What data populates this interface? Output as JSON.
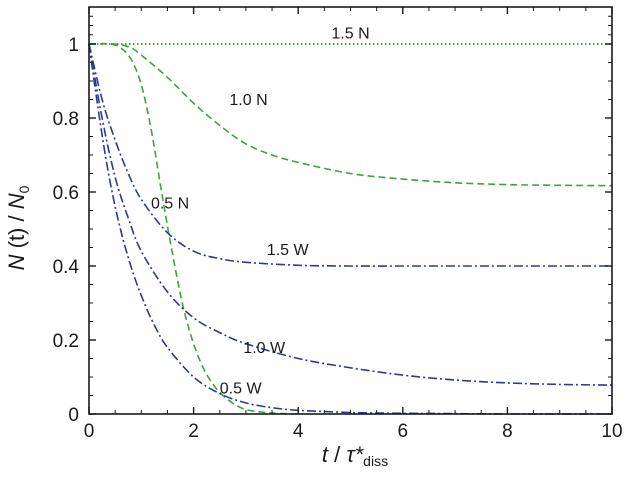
{
  "chart_data": {
    "type": "line",
    "xlabel": {
      "main": "t",
      "slash": " / ",
      "tau": "τ*",
      "sub": "diss"
    },
    "ylabel": {
      "main": "N",
      "mid": " (t) / ",
      "denom": "N",
      "sub": "0"
    },
    "xlim": [
      0,
      10
    ],
    "ylim": [
      0,
      1.1
    ],
    "xticks": [
      0,
      2,
      4,
      6,
      8,
      10
    ],
    "yticks": [
      0,
      0.2,
      0.4,
      0.6,
      0.8,
      1
    ],
    "ytick_labels": [
      "0",
      "0.2",
      "0.4",
      "0.6",
      "0.8",
      "1"
    ],
    "grid": false,
    "series": [
      {
        "name": "1.5 N",
        "color": "#3aa63a",
        "style": "dotted",
        "x": [
          0,
          1,
          2,
          3,
          4,
          5,
          6,
          7,
          8,
          9,
          10
        ],
        "y": [
          1,
          1,
          1,
          1,
          1,
          1,
          1,
          1,
          1,
          1,
          1
        ],
        "label_pos": [
          5,
          1.015
        ]
      },
      {
        "name": "1.0 N",
        "color": "#3aa63a",
        "style": "dashed",
        "x": [
          0,
          0.5,
          0.8,
          1,
          1.5,
          2,
          2.5,
          3,
          3.5,
          4,
          5,
          6,
          7,
          8,
          9,
          10
        ],
        "y": [
          1,
          1,
          0.99,
          0.97,
          0.91,
          0.84,
          0.78,
          0.73,
          0.7,
          0.68,
          0.65,
          0.635,
          0.625,
          0.62,
          0.618,
          0.617
        ],
        "label_pos": [
          3.05,
          0.835
        ]
      },
      {
        "name": "0.5 N",
        "color": "#3aa63a",
        "style": "dashed",
        "x": [
          0,
          0.4,
          0.6,
          0.8,
          1,
          1.2,
          1.4,
          1.6,
          1.8,
          2,
          2.2,
          2.4,
          2.6,
          2.8,
          3,
          3.3,
          3.6,
          4
        ],
        "y": [
          1,
          1,
          0.99,
          0.96,
          0.89,
          0.76,
          0.59,
          0.43,
          0.29,
          0.19,
          0.12,
          0.075,
          0.045,
          0.025,
          0.012,
          0.005,
          0.002,
          0
        ],
        "label_pos": [
          1.55,
          0.555
        ]
      },
      {
        "name": "1.5 W",
        "color": "#2b3a96",
        "style": "dashdot",
        "x": [
          0,
          0.25,
          0.5,
          0.75,
          1,
          1.5,
          2,
          2.5,
          3,
          4,
          5,
          6,
          7,
          8,
          9,
          10
        ],
        "y": [
          1,
          0.85,
          0.74,
          0.65,
          0.58,
          0.49,
          0.44,
          0.42,
          0.41,
          0.402,
          0.4,
          0.4,
          0.4,
          0.4,
          0.4,
          0.4
        ],
        "label_pos": [
          3.8,
          0.43
        ]
      },
      {
        "name": "1.0 W",
        "color": "#2b3a96",
        "style": "dashdot",
        "x": [
          0,
          0.25,
          0.5,
          0.75,
          1,
          1.5,
          2,
          2.5,
          3,
          4,
          5,
          6,
          7,
          8,
          9,
          10
        ],
        "y": [
          1,
          0.8,
          0.64,
          0.53,
          0.44,
          0.33,
          0.26,
          0.22,
          0.19,
          0.15,
          0.125,
          0.105,
          0.092,
          0.084,
          0.08,
          0.078
        ],
        "label_pos": [
          3.35,
          0.165
        ]
      },
      {
        "name": "0.5 W",
        "color": "#2b3a96",
        "style": "dashdot",
        "x": [
          0,
          0.2,
          0.4,
          0.6,
          0.8,
          1,
          1.25,
          1.5,
          2,
          2.5,
          3,
          3.5,
          4,
          5,
          6,
          7,
          8,
          10
        ],
        "y": [
          1,
          0.8,
          0.63,
          0.5,
          0.4,
          0.32,
          0.24,
          0.18,
          0.1,
          0.055,
          0.03,
          0.017,
          0.01,
          0.004,
          0.002,
          0.001,
          0,
          0
        ],
        "label_pos": [
          2.9,
          0.055
        ]
      }
    ]
  }
}
